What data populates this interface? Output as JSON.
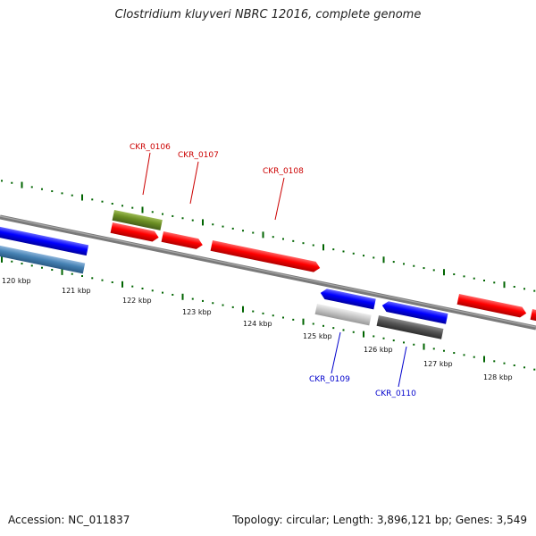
{
  "title": "Clostridium kluyveri NBRC 12016, complete genome",
  "footer": {
    "accession": "Accession: NC_011837",
    "summary": "Topology: circular; Length: 3,896,121 bp; Genes: 3,549"
  },
  "ticks": [
    "120 kbp",
    "121 kbp",
    "122 kbp",
    "123 kbp",
    "124 kbp",
    "125 kbp",
    "126 kbp",
    "127 kbp",
    "128 kbp"
  ],
  "gene_labels": [
    {
      "name": "CKR_0106",
      "strand": "forward",
      "color": "#cc0000"
    },
    {
      "name": "CKR_0107",
      "strand": "forward",
      "color": "#cc0000"
    },
    {
      "name": "CKR_0108",
      "strand": "forward",
      "color": "#cc0000"
    },
    {
      "name": "CKR_0109",
      "strand": "reverse",
      "color": "#0000cc"
    },
    {
      "name": "CKR_0110",
      "strand": "reverse",
      "color": "#0000cc"
    }
  ],
  "colors": {
    "backbone": "#808080",
    "forward_gene": "#ff0000",
    "reverse_gene": "#0000ff",
    "olive_feature": "#6b8e23",
    "steelblue_feature": "#4682b4",
    "lightgray_feature": "#c8c8c8",
    "darkgray_feature": "#555555",
    "tick_mark": "#006400"
  }
}
